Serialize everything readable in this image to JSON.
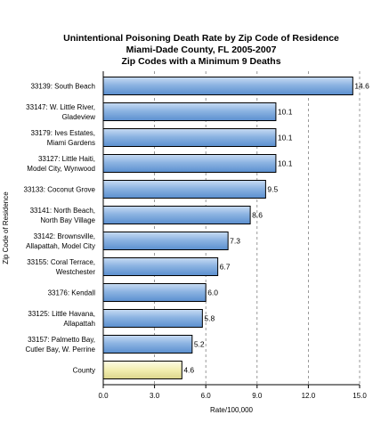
{
  "chart_data": {
    "type": "bar",
    "orientation": "horizontal",
    "title": [
      "Unintentional Poisoning Death Rate by Zip Code of Residence",
      "Miami-Dade County, FL  2005-2007",
      "Zip Codes with a Minimum 9 Deaths"
    ],
    "xlabel": "Rate/100,000",
    "ylabel": "Zip Code of Residence",
    "xlim": [
      0,
      15
    ],
    "xticks": [
      "0.0",
      "3.0",
      "6.0",
      "9.0",
      "12.0",
      "15.0"
    ],
    "grid": "vertical dashed",
    "categories": [
      [
        "33139:  South Beach"
      ],
      [
        "33147:  W. Little River,",
        "Gladeview"
      ],
      [
        "33179:  Ives Estates,",
        "Miami Gardens"
      ],
      [
        "33127:  Little Haiti,",
        "Model City, Wynwood"
      ],
      [
        "33133:  Coconut Grove"
      ],
      [
        "33141:  North Beach,",
        "North Bay Village"
      ],
      [
        "33142:  Brownsville,",
        "Allapattah, Model City"
      ],
      [
        "33155:  Coral Terrace,",
        "Westchester"
      ],
      [
        "33176:  Kendall"
      ],
      [
        "33125:  Little Havana,",
        "Allapattah"
      ],
      [
        "33157:  Palmetto Bay,",
        "Cutler Bay, W. Perrine"
      ],
      [
        "County"
      ]
    ],
    "values": [
      14.6,
      10.1,
      10.1,
      10.1,
      9.5,
      8.6,
      7.3,
      6.7,
      6.0,
      5.8,
      5.2,
      4.6
    ],
    "value_labels": [
      "14.6",
      "10.1",
      "10.1",
      "10.1",
      "9.5",
      "8.6",
      "7.3",
      "6.7",
      "6.0",
      "5.8",
      "5.2",
      "4.6"
    ],
    "colors": {
      "bar": "#8db4e2",
      "bar_dark": "#3f6fa8",
      "highlight": "#f6f3b8",
      "highlight_dark": "#c9c27a"
    }
  }
}
